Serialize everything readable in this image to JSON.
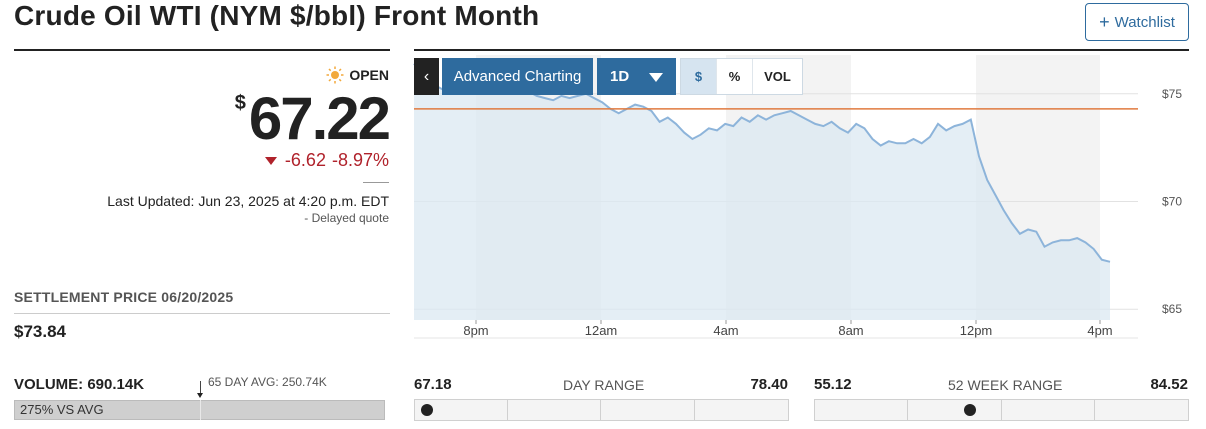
{
  "header": {
    "title": "Crude Oil WTI (NYM $/bbl) Front Month",
    "watchlist_label": "Watchlist"
  },
  "quote": {
    "status": "OPEN",
    "currency": "$",
    "price": "67.22",
    "change": "-6.62",
    "change_pct": "-8.97%",
    "last_updated": "Last Updated: Jun 23, 2025 at 4:20 p.m. EDT",
    "delayed": "-  Delayed quote"
  },
  "settlement": {
    "label": "SETTLEMENT PRICE 06/20/2025",
    "value": "$73.84"
  },
  "volume": {
    "label": "VOLUME: 690.14K",
    "avg_label": "65 DAY AVG: 250.74K",
    "vs_avg": "275% VS AVG",
    "vs_avg_pct": 275
  },
  "toolbar": {
    "back_icon": "chevron-left-icon",
    "advanced_charting": "Advanced Charting",
    "timeframe": "1D",
    "modes": [
      "$",
      "%",
      "VOL"
    ],
    "active_mode": "$"
  },
  "day_range": {
    "label": "DAY RANGE",
    "low": "67.18",
    "high": "78.40",
    "current": 67.22
  },
  "week52_range": {
    "label": "52 WEEK RANGE",
    "low": "55.12",
    "high": "84.52",
    "current": 67.22
  },
  "colors": {
    "accent": "#2e6b9e",
    "negative": "#b0222b",
    "line": "#8db4da",
    "area": "#dbe8f2",
    "prev_close": "#e07a3f"
  },
  "chart_data": {
    "type": "area",
    "x_tick_labels": [
      "8pm",
      "12am",
      "4am",
      "8am",
      "12pm",
      "4pm"
    ],
    "y_tick_labels": [
      "$75",
      "$70",
      "$65"
    ],
    "ylim": [
      64.5,
      76.8
    ],
    "previous_close": 74.3,
    "prices": [
      76.4,
      75.9,
      75.5,
      75.3,
      75.1,
      75.3,
      75.2,
      75.4,
      75.3,
      75.5,
      75.4,
      75.5,
      75.3,
      75.2,
      75.1,
      74.9,
      74.8,
      74.7,
      74.9,
      74.8,
      74.9,
      75.0,
      74.8,
      74.6,
      74.3,
      74.1,
      74.3,
      74.5,
      74.4,
      74.2,
      73.7,
      73.9,
      73.6,
      73.2,
      72.9,
      73.1,
      73.4,
      73.3,
      73.6,
      73.5,
      73.9,
      73.7,
      74.0,
      73.8,
      74.0,
      74.1,
      74.2,
      74.0,
      73.8,
      73.6,
      73.5,
      73.7,
      73.4,
      73.2,
      73.6,
      73.4,
      72.9,
      72.6,
      72.8,
      72.7,
      72.7,
      72.9,
      72.7,
      73.0,
      73.6,
      73.3,
      73.5,
      73.6,
      73.8,
      72.1,
      71.0,
      70.3,
      69.6,
      69.0,
      68.5,
      68.7,
      68.6,
      67.9,
      68.1,
      68.2,
      68.2,
      68.3,
      68.1,
      67.8,
      67.3,
      67.2
    ]
  }
}
